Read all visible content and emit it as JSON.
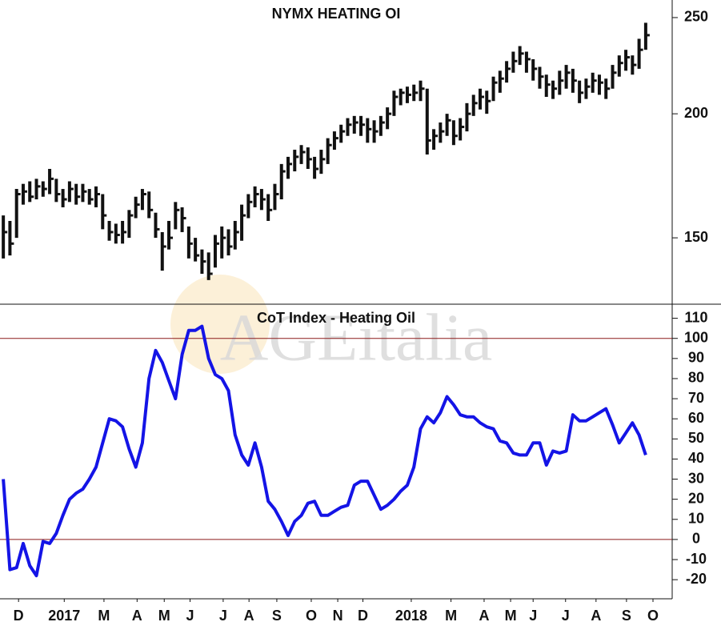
{
  "chart_data": [
    {
      "type": "ohlc",
      "title": "NYMX HEATING OI",
      "color": "#111111",
      "log_scale": true,
      "xlim": [
        -0.5,
        101
      ],
      "ylim": [
        128.6,
        260.4
      ],
      "yticks": [
        150,
        200,
        250
      ],
      "high": [
        158,
        156,
        168,
        170,
        171,
        172,
        171,
        176,
        172,
        168,
        171,
        170,
        170,
        168,
        169,
        166,
        156,
        155,
        156,
        160,
        165,
        168,
        167,
        159,
        152,
        156,
        163,
        161,
        154,
        150,
        146,
        145,
        151,
        154,
        153,
        156,
        162,
        166,
        169,
        168,
        166,
        170,
        178,
        181,
        184,
        186,
        185,
        181,
        184,
        189,
        192,
        195,
        198,
        199,
        199,
        198,
        197,
        199,
        203,
        211,
        212,
        213,
        214,
        216,
        212,
        193,
        196,
        200,
        197,
        198,
        205,
        209,
        212,
        211,
        218,
        221,
        226,
        231,
        234,
        231,
        227,
        223,
        219,
        216,
        221,
        224,
        222,
        216,
        217,
        220,
        219,
        217,
        224,
        229,
        232,
        229,
        238,
        247
      ],
      "low": [
        143,
        144,
        150,
        162,
        163,
        164,
        165,
        166,
        163,
        161,
        163,
        162,
        163,
        162,
        161,
        153,
        149,
        148,
        148,
        150,
        157,
        160,
        157,
        150,
        139,
        146,
        153,
        152,
        143,
        142,
        138,
        136,
        140,
        143,
        144,
        146,
        149,
        157,
        161,
        160,
        156,
        160,
        164,
        172,
        175,
        178,
        176,
        172,
        174,
        178,
        184,
        187,
        190,
        191,
        190,
        187,
        187,
        190,
        193,
        199,
        204,
        205,
        206,
        206,
        182,
        184,
        187,
        190,
        186,
        188,
        192,
        199,
        202,
        200,
        206,
        210,
        215,
        220,
        224,
        220,
        216,
        212,
        208,
        207,
        209,
        212,
        210,
        205,
        207,
        210,
        209,
        207,
        212,
        218,
        221,
        219,
        222,
        232
      ],
      "close": [
        152,
        148,
        166,
        167,
        165,
        169,
        168,
        172,
        166,
        164,
        168,
        165,
        167,
        164,
        166,
        158,
        152,
        151,
        152,
        158,
        162,
        166,
        160,
        153,
        147,
        150,
        160,
        157,
        148,
        144,
        142,
        138,
        148,
        150,
        147,
        152,
        158,
        163,
        166,
        164,
        160,
        166,
        175,
        178,
        181,
        183,
        180,
        176,
        180,
        186,
        189,
        192,
        195,
        196,
        195,
        193,
        192,
        196,
        200,
        208,
        210,
        209,
        210,
        212,
        188,
        190,
        192,
        197,
        190,
        194,
        200,
        205,
        208,
        206,
        215,
        217,
        222,
        226,
        230,
        227,
        222,
        218,
        214,
        212,
        216,
        220,
        216,
        210,
        213,
        216,
        215,
        212,
        220,
        225,
        228,
        224,
        232,
        240
      ]
    },
    {
      "type": "line",
      "title": "CoT Index - Heating Oil",
      "watermark": "AGEitalia",
      "xlim": [
        -0.5,
        101
      ],
      "ylim": [
        -29.5,
        117
      ],
      "yticks": [
        -20,
        -10,
        0,
        10,
        20,
        30,
        40,
        50,
        60,
        70,
        80,
        90,
        100,
        110
      ],
      "reference_lines": [
        100,
        0
      ],
      "reference_color": "#8b1a1a",
      "xticks": [
        {
          "value": 2.3,
          "label": "D"
        },
        {
          "value": 9.2,
          "label": "2017"
        },
        {
          "value": 15.2,
          "label": "M"
        },
        {
          "value": 20.2,
          "label": "A"
        },
        {
          "value": 24.3,
          "label": "M"
        },
        {
          "value": 28.2,
          "label": "J"
        },
        {
          "value": 33.2,
          "label": "J"
        },
        {
          "value": 37.1,
          "label": "A"
        },
        {
          "value": 41.3,
          "label": "S"
        },
        {
          "value": 46.5,
          "label": "O"
        },
        {
          "value": 50.5,
          "label": "N"
        },
        {
          "value": 54.3,
          "label": "D"
        },
        {
          "value": 61.6,
          "label": "2018"
        },
        {
          "value": 67.6,
          "label": "M"
        },
        {
          "value": 72.6,
          "label": "A"
        },
        {
          "value": 76.6,
          "label": "M"
        },
        {
          "value": 80.0,
          "label": "J"
        },
        {
          "value": 84.9,
          "label": "J"
        },
        {
          "value": 89.5,
          "label": "A"
        },
        {
          "value": 94.1,
          "label": "S"
        },
        {
          "value": 98.1,
          "label": "O"
        }
      ],
      "series": [
        {
          "color": "#1414e6",
          "values": [
            30,
            -15,
            -14,
            -2,
            -13,
            -18,
            -1,
            -2,
            3,
            12,
            20,
            23,
            25,
            30,
            36,
            48,
            60,
            59,
            56,
            45,
            36,
            48,
            80,
            94,
            88,
            79,
            70,
            92,
            104,
            104,
            106,
            90,
            82,
            80,
            74,
            52,
            42,
            37,
            48,
            36,
            19,
            15,
            9,
            2,
            9,
            12,
            18,
            19,
            12,
            12,
            14,
            16,
            17,
            27,
            29,
            29,
            22,
            15,
            17,
            20,
            24,
            27,
            36,
            55,
            61,
            58,
            63,
            71,
            67,
            62,
            61,
            61,
            58,
            56,
            55,
            49,
            48,
            43,
            42,
            42,
            48,
            48,
            37,
            44,
            43,
            44,
            62,
            59,
            59,
            61,
            63,
            65,
            57,
            48,
            53,
            58,
            52,
            42
          ]
        }
      ]
    }
  ]
}
